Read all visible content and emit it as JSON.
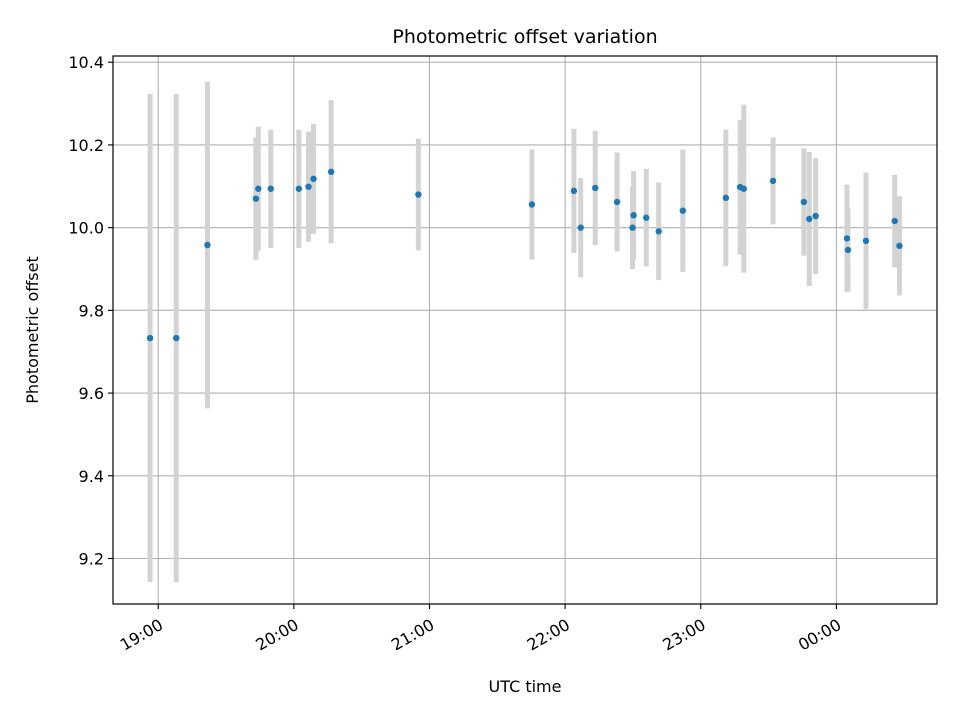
{
  "chart_data": {
    "type": "scatter",
    "title": "Photometric offset variation",
    "xlabel": "UTC time",
    "ylabel": "Photometric offset",
    "xlim": [
      18.6667,
      24.7417
    ],
    "ylim": [
      9.09,
      10.415
    ],
    "grid": true,
    "x_ticks": [
      {
        "value": 19,
        "label": "19:00"
      },
      {
        "value": 20,
        "label": "20:00"
      },
      {
        "value": 21,
        "label": "21:00"
      },
      {
        "value": 22,
        "label": "22:00"
      },
      {
        "value": 23,
        "label": "23:00"
      },
      {
        "value": 24,
        "label": "00:00"
      }
    ],
    "y_ticks": [
      {
        "value": 9.2,
        "label": "9.2"
      },
      {
        "value": 9.4,
        "label": "9.4"
      },
      {
        "value": 9.6,
        "label": "9.6"
      },
      {
        "value": 9.8,
        "label": "9.8"
      },
      {
        "value": 10.0,
        "label": "10.0"
      },
      {
        "value": 10.2,
        "label": "10.2"
      },
      {
        "value": 10.4,
        "label": "10.4"
      }
    ],
    "marker_color": "#1f77b4",
    "errorbar_color": "#d3d3d3",
    "points": [
      {
        "x": 18.94,
        "y": 9.733,
        "err": 0.59
      },
      {
        "x": 19.133,
        "y": 9.733,
        "err": 0.59
      },
      {
        "x": 19.363,
        "y": 9.958,
        "err": 0.395
      },
      {
        "x": 19.72,
        "y": 10.07,
        "err": 0.148
      },
      {
        "x": 19.738,
        "y": 10.094,
        "err": 0.15
      },
      {
        "x": 19.83,
        "y": 10.094,
        "err": 0.143
      },
      {
        "x": 20.037,
        "y": 10.094,
        "err": 0.143
      },
      {
        "x": 20.108,
        "y": 10.099,
        "err": 0.133
      },
      {
        "x": 20.145,
        "y": 10.118,
        "err": 0.133
      },
      {
        "x": 20.275,
        "y": 10.135,
        "err": 0.173
      },
      {
        "x": 20.918,
        "y": 10.08,
        "err": 0.135
      },
      {
        "x": 21.755,
        "y": 10.056,
        "err": 0.133
      },
      {
        "x": 22.065,
        "y": 10.089,
        "err": 0.15
      },
      {
        "x": 22.115,
        "y": 10.0,
        "err": 0.12
      },
      {
        "x": 22.222,
        "y": 10.096,
        "err": 0.138
      },
      {
        "x": 22.383,
        "y": 10.062,
        "err": 0.12
      },
      {
        "x": 22.497,
        "y": 10.0,
        "err": 0.1
      },
      {
        "x": 22.505,
        "y": 10.03,
        "err": 0.107
      },
      {
        "x": 22.598,
        "y": 10.024,
        "err": 0.118
      },
      {
        "x": 22.69,
        "y": 9.991,
        "err": 0.118
      },
      {
        "x": 22.868,
        "y": 10.041,
        "err": 0.148
      },
      {
        "x": 23.185,
        "y": 10.072,
        "err": 0.165
      },
      {
        "x": 23.29,
        "y": 10.098,
        "err": 0.163
      },
      {
        "x": 23.317,
        "y": 10.094,
        "err": 0.203
      },
      {
        "x": 23.533,
        "y": 10.113,
        "err": 0.105
      },
      {
        "x": 23.76,
        "y": 10.062,
        "err": 0.13
      },
      {
        "x": 23.8,
        "y": 10.021,
        "err": 0.162
      },
      {
        "x": 23.847,
        "y": 10.028,
        "err": 0.14
      },
      {
        "x": 24.078,
        "y": 9.974,
        "err": 0.13
      },
      {
        "x": 24.085,
        "y": 9.946,
        "err": 0.1
      },
      {
        "x": 24.218,
        "y": 9.968,
        "err": 0.165
      },
      {
        "x": 24.43,
        "y": 10.016,
        "err": 0.112
      },
      {
        "x": 24.465,
        "y": 9.956,
        "err": 0.12
      }
    ]
  }
}
